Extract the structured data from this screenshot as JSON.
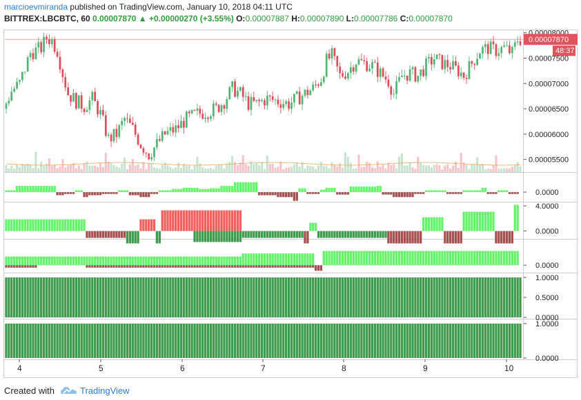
{
  "header": {
    "author": "marcioevmiranda",
    "published_text": "published on TradingView.com, January 10, 2018 04:11 UTC"
  },
  "ohlc": {
    "symbol": "BITTREX:LBCBTC, 60",
    "last": "0.00007870",
    "change": "▲ +0.00000270 (+3.55%)",
    "o_label": "O:",
    "o": "0.00007887",
    "h_label": "H:",
    "h": "0.00007890",
    "l_label": "L:",
    "l": "0.00007786",
    "c_label": "C:",
    "c": "0.00007870"
  },
  "footer": {
    "created_with": "Created with",
    "brand": "TradingView"
  },
  "colors": {
    "up": "#4fb672",
    "down": "#e04b5a",
    "bright_green": "#66f26b",
    "dark_green": "#3e9b4b",
    "bright_red": "#f25d5d",
    "dark_red": "#a64f4f",
    "price_tag": "#e3535d",
    "volume_up": "#c7e4cf",
    "volume_down": "#f6c4c8"
  },
  "chart_data": {
    "type": "candlestick",
    "x_ticks": [
      "4",
      "5",
      "6",
      "7",
      "8",
      "9",
      "10"
    ],
    "price_axis_labels": [
      "0.00008000",
      "0.00007500",
      "0.00007000",
      "0.00006500",
      "0.00006000",
      "0.00005500"
    ],
    "price_ylim": [
      5.25e-05,
      8.05e-05
    ],
    "last_price_label": "0.00007870",
    "countdown_label": "48:37",
    "panes": [
      {
        "name": "pane1",
        "labels": [
          "0.0000"
        ]
      },
      {
        "name": "pane2",
        "labels": [
          "4.0000",
          "0.0000"
        ]
      },
      {
        "name": "pane3",
        "labels": [
          "0.0000"
        ]
      },
      {
        "name": "pane4",
        "labels": [
          "1.0000",
          "0.5000",
          "0.0000"
        ]
      },
      {
        "name": "pane5",
        "labels": [
          "1.0000",
          "0.0000"
        ]
      }
    ],
    "price_keypoints": [
      [
        0,
        6.5e-05
      ],
      [
        3,
        6.85e-05
      ],
      [
        6,
        7e-05
      ],
      [
        10,
        7.6e-05
      ],
      [
        14,
        7.7e-05
      ],
      [
        16,
        7.9e-05
      ],
      [
        18,
        7.85e-05
      ],
      [
        20,
        7.65e-05
      ],
      [
        22,
        7.2e-05
      ],
      [
        24,
        6.8e-05
      ],
      [
        27,
        6.65e-05
      ],
      [
        30,
        6.55e-05
      ],
      [
        33,
        6.7e-05
      ],
      [
        36,
        6.4e-05
      ],
      [
        39,
        5.9e-05
      ],
      [
        42,
        6e-05
      ],
      [
        45,
        6.3e-05
      ],
      [
        48,
        6.1e-05
      ],
      [
        51,
        5.8e-05
      ],
      [
        54,
        5.6e-05
      ],
      [
        57,
        5.8e-05
      ],
      [
        60,
        6e-05
      ],
      [
        64,
        6.1e-05
      ],
      [
        68,
        6.3e-05
      ],
      [
        72,
        6.4e-05
      ],
      [
        76,
        6.45e-05
      ],
      [
        79,
        6.5e-05
      ],
      [
        82,
        6.65e-05
      ],
      [
        85,
        6.9e-05
      ],
      [
        88,
        6.8e-05
      ],
      [
        91,
        6.6e-05
      ],
      [
        94,
        6.6e-05
      ],
      [
        98,
        6.7e-05
      ],
      [
        102,
        6.65e-05
      ],
      [
        106,
        6.6e-05
      ],
      [
        109,
        6.7e-05
      ],
      [
        112,
        6.8e-05
      ],
      [
        115,
        6.9e-05
      ],
      [
        118,
        7.1e-05
      ],
      [
        120,
        7.45e-05
      ],
      [
        122,
        7.55e-05
      ],
      [
        125,
        7.15e-05
      ],
      [
        128,
        7.25e-05
      ],
      [
        131,
        7.45e-05
      ],
      [
        134,
        7.4e-05
      ],
      [
        137,
        7.35e-05
      ],
      [
        140,
        7.2e-05
      ],
      [
        143,
        7.05e-05
      ],
      [
        145,
        6.8e-05
      ],
      [
        148,
        7.15e-05
      ],
      [
        151,
        7.2e-05
      ],
      [
        154,
        7.15e-05
      ],
      [
        157,
        7.35e-05
      ],
      [
        160,
        7.5e-05
      ],
      [
        163,
        7.4e-05
      ],
      [
        166,
        7.35e-05
      ],
      [
        169,
        7.25e-05
      ],
      [
        171,
        7.15e-05
      ],
      [
        174,
        7.4e-05
      ],
      [
        177,
        7.65e-05
      ],
      [
        180,
        7.7e-05
      ],
      [
        183,
        7.65e-05
      ],
      [
        186,
        7.7e-05
      ],
      [
        189,
        7.6e-05
      ],
      [
        191,
        7.87e-05
      ]
    ],
    "pane1_series": [
      [
        0,
        4,
        0.3
      ],
      [
        4,
        19,
        1.0
      ],
      [
        19,
        22,
        -0.5
      ],
      [
        22,
        26,
        -0.3
      ],
      [
        26,
        29,
        0.3
      ],
      [
        29,
        31,
        -0.8
      ],
      [
        31,
        36,
        -0.5
      ],
      [
        36,
        42,
        -0.3
      ],
      [
        42,
        46,
        0.3
      ],
      [
        46,
        50,
        -0.5
      ],
      [
        50,
        54,
        -0.8
      ],
      [
        54,
        57,
        -0.3
      ],
      [
        57,
        62,
        0.3
      ],
      [
        62,
        66,
        0.5
      ],
      [
        66,
        72,
        0.7
      ],
      [
        72,
        76,
        0.5
      ],
      [
        76,
        80,
        0.6
      ],
      [
        80,
        85,
        1.0
      ],
      [
        85,
        94,
        1.6
      ],
      [
        94,
        101,
        -0.5
      ],
      [
        101,
        107,
        -0.8
      ],
      [
        107,
        109,
        -1.4
      ],
      [
        109,
        112,
        0.6
      ],
      [
        112,
        117,
        -0.3
      ],
      [
        117,
        119,
        0.4
      ],
      [
        119,
        123,
        0.7
      ],
      [
        123,
        128,
        -0.4
      ],
      [
        128,
        138,
        0.9
      ],
      [
        138,
        140,
        1.0
      ],
      [
        140,
        144,
        -0.4
      ],
      [
        144,
        152,
        -0.8
      ],
      [
        152,
        156,
        -0.3
      ],
      [
        156,
        164,
        0.3
      ],
      [
        164,
        170,
        -0.3
      ],
      [
        170,
        177,
        0.3
      ],
      [
        177,
        179,
        0.7
      ],
      [
        179,
        183,
        -0.3
      ],
      [
        183,
        187,
        0.3
      ],
      [
        187,
        191,
        -0.3
      ]
    ],
    "pane2_series": [
      [
        0,
        30,
        1.7,
        "bright_green"
      ],
      [
        30,
        45,
        -1.0,
        "dark_red"
      ],
      [
        45,
        50,
        -1.8,
        "dark_green"
      ],
      [
        50,
        56,
        1.7,
        "bright_red"
      ],
      [
        56,
        58,
        -1.8,
        "dark_green"
      ],
      [
        58,
        70,
        3.0,
        "bright_red"
      ],
      [
        70,
        88,
        3.0,
        "bright_red"
      ],
      [
        70,
        88,
        -1.6,
        "dark_green"
      ],
      [
        88,
        111,
        -1.0,
        "dark_green"
      ],
      [
        111,
        113,
        -1.8,
        "dark_red"
      ],
      [
        113,
        116,
        1.2,
        "bright_green"
      ],
      [
        116,
        142,
        -1.0,
        "dark_green"
      ],
      [
        142,
        155,
        -1.8,
        "dark_red"
      ],
      [
        155,
        163,
        2.0,
        "bright_green"
      ],
      [
        163,
        170,
        -1.8,
        "dark_red"
      ],
      [
        170,
        182,
        2.8,
        "bright_green"
      ],
      [
        182,
        189,
        -1.8,
        "dark_red"
      ],
      [
        189,
        191,
        3.8,
        "bright_green"
      ]
    ],
    "pane3_series": [
      [
        0,
        12,
        1.4,
        "bright_green"
      ],
      [
        0,
        12,
        -0.4,
        "dark_red"
      ],
      [
        12,
        30,
        1.4,
        "bright_green"
      ],
      [
        30,
        88,
        1.4,
        "bright_green"
      ],
      [
        30,
        88,
        -0.4,
        "dark_red"
      ],
      [
        88,
        115,
        1.9,
        "bright_green"
      ],
      [
        88,
        115,
        -0.4,
        "dark_red"
      ],
      [
        115,
        118,
        -0.9,
        "dark_red"
      ],
      [
        118,
        191,
        2.3,
        "bright_green"
      ]
    ],
    "pane4_value": 1.0,
    "pane5_value": 1.0
  }
}
